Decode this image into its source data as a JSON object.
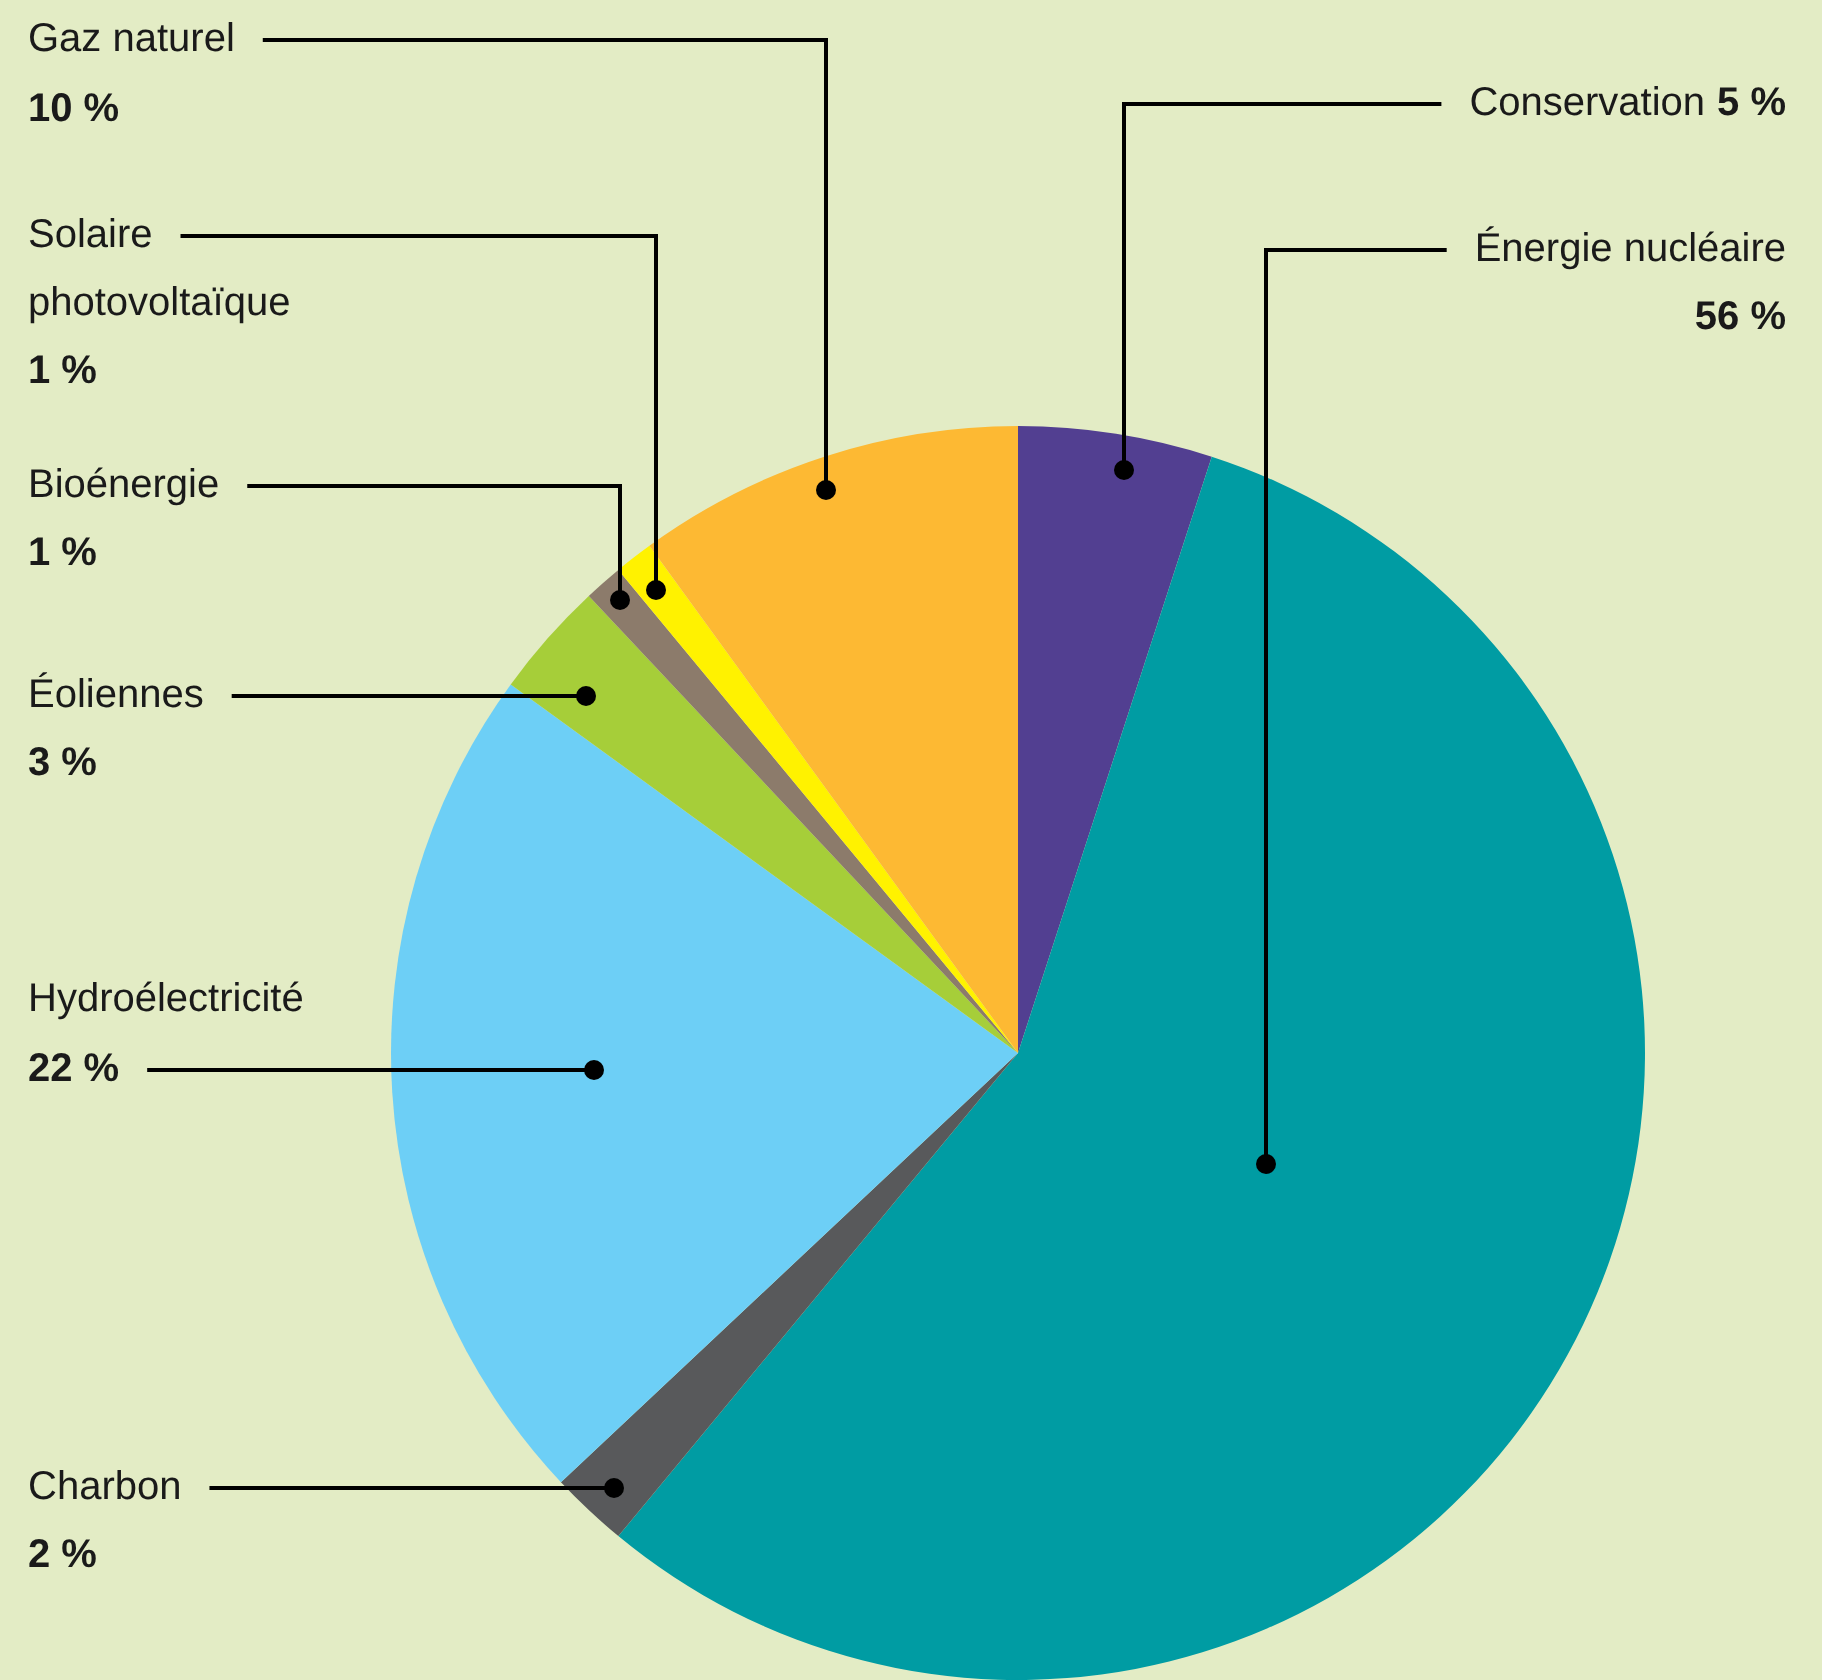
{
  "chart_data": {
    "type": "pie",
    "categories": [
      "Conservation",
      "Énergie nucléaire",
      "Charbon",
      "Hydroélectricité",
      "Éoliennes",
      "Bioénergie",
      "Solaire photovoltaïque",
      "Gaz naturel"
    ],
    "values": [
      5,
      56,
      2,
      22,
      3,
      1,
      1,
      10
    ],
    "value_labels": [
      "5 %",
      "56 %",
      "2 %",
      "22 %",
      "3 %",
      "1 %",
      "1 %",
      "10 %"
    ],
    "colors": [
      "#523f91",
      "#009ca3",
      "#58595b",
      "#6dcff6",
      "#a6ce39",
      "#8c7b6b",
      "#fff200",
      "#fdb933"
    ]
  }
}
